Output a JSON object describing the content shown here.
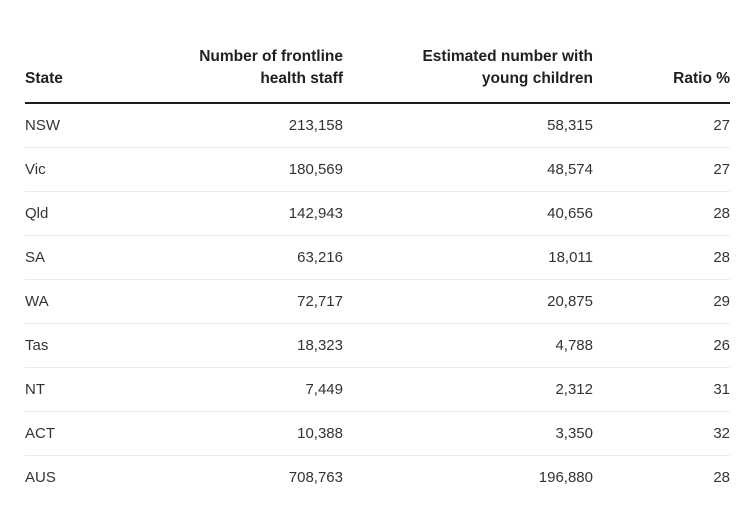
{
  "colors": {
    "background": "#ffffff",
    "header_text": "#212121",
    "body_text": "#333333",
    "header_rule": "#1c1c1c",
    "row_separator": "#ebebeb"
  },
  "chart_data": {
    "type": "table",
    "title": "",
    "columns": [
      {
        "label": "State",
        "align": "left"
      },
      {
        "label": "Number of frontline\nhealth staff",
        "align": "right"
      },
      {
        "label": "Estimated number with\nyoung children",
        "align": "right"
      },
      {
        "label": "Ratio %",
        "align": "right"
      }
    ],
    "rows": [
      {
        "cells": [
          "NSW",
          "213,158",
          "58,315",
          "27"
        ]
      },
      {
        "cells": [
          "Vic",
          "180,569",
          "48,574",
          "27"
        ]
      },
      {
        "cells": [
          "Qld",
          "142,943",
          "40,656",
          "28"
        ]
      },
      {
        "cells": [
          "SA",
          "63,216",
          "18,011",
          "28"
        ]
      },
      {
        "cells": [
          "WA",
          "72,717",
          "20,875",
          "29"
        ]
      },
      {
        "cells": [
          "Tas",
          "18,323",
          "4,788",
          "26"
        ]
      },
      {
        "cells": [
          "NT",
          "7,449",
          "2,312",
          "31"
        ]
      },
      {
        "cells": [
          "ACT",
          "10,388",
          "3,350",
          "32"
        ]
      },
      {
        "cells": [
          "AUS",
          "708,763",
          "196,880",
          "28"
        ]
      }
    ],
    "numeric_rows": [
      {
        "state": "NSW",
        "frontline_staff": 213158,
        "with_young_children": 58315,
        "ratio_pct": 27
      },
      {
        "state": "Vic",
        "frontline_staff": 180569,
        "with_young_children": 48574,
        "ratio_pct": 27
      },
      {
        "state": "Qld",
        "frontline_staff": 142943,
        "with_young_children": 40656,
        "ratio_pct": 28
      },
      {
        "state": "SA",
        "frontline_staff": 63216,
        "with_young_children": 18011,
        "ratio_pct": 28
      },
      {
        "state": "WA",
        "frontline_staff": 72717,
        "with_young_children": 20875,
        "ratio_pct": 29
      },
      {
        "state": "Tas",
        "frontline_staff": 18323,
        "with_young_children": 4788,
        "ratio_pct": 26
      },
      {
        "state": "NT",
        "frontline_staff": 7449,
        "with_young_children": 2312,
        "ratio_pct": 31
      },
      {
        "state": "ACT",
        "frontline_staff": 10388,
        "with_young_children": 3350,
        "ratio_pct": 32
      },
      {
        "state": "AUS",
        "frontline_staff": 708763,
        "with_young_children": 196880,
        "ratio_pct": 28
      }
    ]
  }
}
